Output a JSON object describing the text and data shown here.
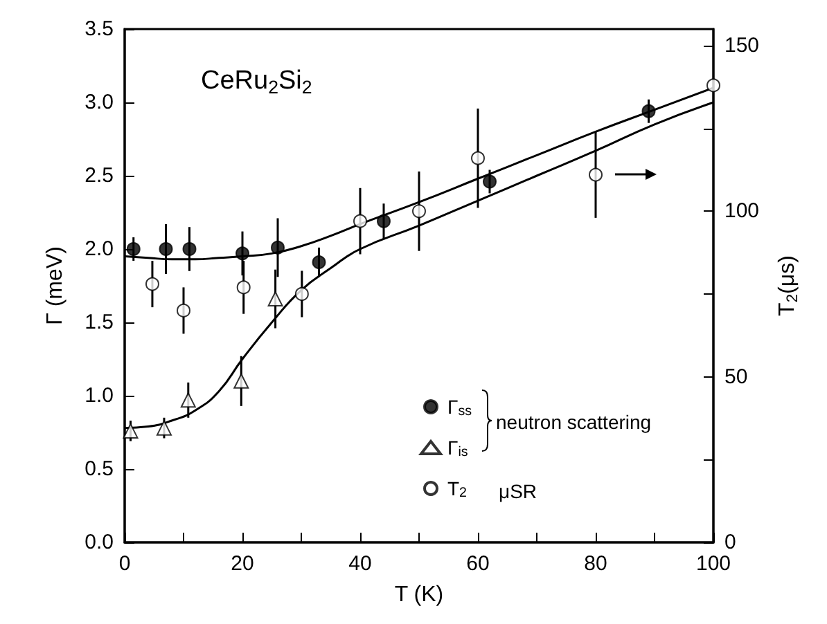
{
  "chart_data": {
    "type": "scatter",
    "title": "CeRu$_{2}$Si$_{2}$",
    "xlabel": "T (K)",
    "ylabel": "Γ (meV)",
    "y2label": "T$_{2}$(μs)",
    "xlim": [
      0,
      100
    ],
    "xticks": [
      0,
      {
        "value": 10,
        "label": null
      },
      20,
      {
        "value": 30,
        "label": null
      },
      40,
      {
        "value": 50,
        "label": null
      },
      60,
      {
        "value": 70,
        "label": null
      },
      80,
      {
        "value": 90,
        "label": null
      },
      100
    ],
    "ylim": [
      0,
      3.5
    ],
    "yticks": [
      {
        "value": 0,
        "label": "0.0"
      },
      {
        "value": 0.5,
        "label": "0.5"
      },
      {
        "value": 1,
        "label": "1.0"
      },
      {
        "value": 1.5,
        "label": "1.5"
      },
      {
        "value": 2,
        "label": "2.0"
      },
      {
        "value": 2.5,
        "label": "2.5"
      },
      {
        "value": 3,
        "label": "3.0"
      },
      {
        "value": 3.5,
        "label": "3.5"
      }
    ],
    "y2lim": [
      0,
      155
    ],
    "y2ticks": [
      0,
      {
        "value": 25,
        "label": null
      },
      50,
      {
        "value": 75,
        "label": null
      },
      100,
      {
        "value": 125,
        "label": null
      },
      150
    ],
    "grid": false,
    "legend": "right",
    "annotations": [
      "neutron scattering",
      "μSR"
    ],
    "series": [
      {
        "name": "Γ$_{ss}$",
        "marker": "circle",
        "color": "#000000",
        "x": [
          1.5,
          7,
          11,
          20,
          26,
          33,
          44,
          62,
          89
        ],
        "values": [
          2.0,
          2.0,
          2.0,
          1.97,
          2.01,
          1.91,
          2.19,
          2.46,
          2.94
        ],
        "errors": [
          0.08,
          0.17,
          0.15,
          0.15,
          0.2,
          0.1,
          0.12,
          0.08,
          0.08
        ]
      },
      {
        "name": "Γ$_{is}$",
        "marker": "triangle",
        "color": "#ffffff",
        "x": [
          1,
          6.7,
          10.8,
          19.8,
          25.6
        ],
        "values": [
          0.76,
          0.78,
          0.97,
          1.1,
          1.66
        ],
        "errors": [
          0.07,
          0.07,
          0.12,
          0.17,
          0.2
        ]
      },
      {
        "name": "T$_{2}$",
        "marker": "circle",
        "color": "#ffffff",
        "axis": "y2",
        "x": [
          4.7,
          10,
          20.2,
          30.1,
          40,
          50,
          60,
          80,
          100
        ],
        "values": [
          78,
          70,
          77,
          75,
          97,
          100,
          116,
          111,
          138
        ],
        "errors": [
          7,
          7,
          8,
          7,
          10,
          12,
          15,
          13,
          null
        ]
      },
      {
        "type": "line",
        "marker": "none",
        "color": "#000000",
        "x": [
          0,
          4,
          8,
          12,
          16,
          20,
          25,
          30,
          35,
          40,
          50,
          60,
          70,
          80,
          90,
          100
        ],
        "values": [
          1.95,
          1.94,
          1.93,
          1.93,
          1.94,
          1.95,
          1.97,
          2.02,
          2.09,
          2.17,
          2.32,
          2.48,
          2.64,
          2.8,
          2.95,
          3.1
        ]
      },
      {
        "type": "line",
        "marker": "none",
        "color": "#000000",
        "x": [
          0,
          4,
          8,
          12,
          16,
          20,
          25,
          30,
          35,
          40,
          50,
          60,
          70,
          80,
          90,
          100
        ],
        "values": [
          0.78,
          0.79,
          0.83,
          0.9,
          1.03,
          1.25,
          1.5,
          1.72,
          1.87,
          2.0,
          2.16,
          2.33,
          2.5,
          2.67,
          2.85,
          3.0
        ]
      }
    ]
  }
}
